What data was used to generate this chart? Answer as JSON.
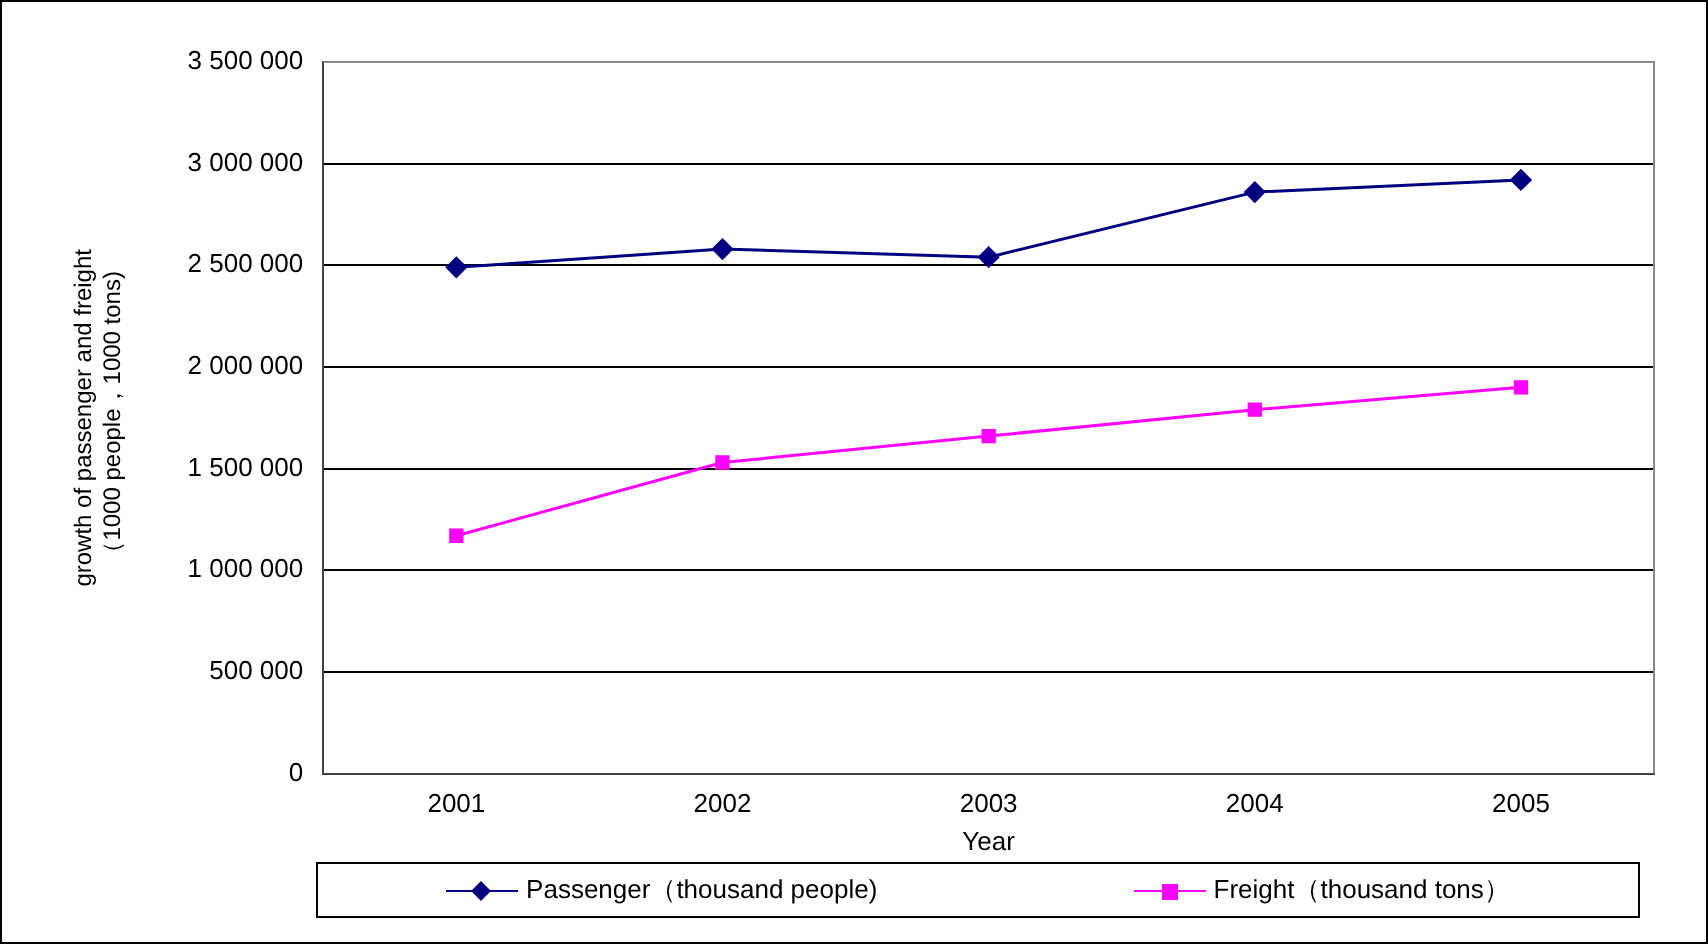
{
  "chart_data": {
    "type": "line",
    "xlabel": "Year",
    "ylabel": "growth of passenger and freight\n（1000 people，1000 tons)",
    "categories": [
      "2001",
      "2002",
      "2003",
      "2004",
      "2005"
    ],
    "series": [
      {
        "name": "Passenger（thousand people)",
        "color": "#000080",
        "marker": "diamond",
        "values": [
          2490000,
          2580000,
          2540000,
          2860000,
          2920000
        ]
      },
      {
        "name": "Freight（thousand tons）",
        "color": "#ff00ff",
        "marker": "square",
        "values": [
          1170000,
          1530000,
          1660000,
          1790000,
          1900000
        ]
      }
    ],
    "ylim": [
      0,
      3500000
    ],
    "yticks": [
      0,
      500000,
      1000000,
      1500000,
      2000000,
      2500000,
      3000000,
      3500000
    ],
    "grid": "y",
    "legend": "bottom",
    "line_style": "solid"
  }
}
